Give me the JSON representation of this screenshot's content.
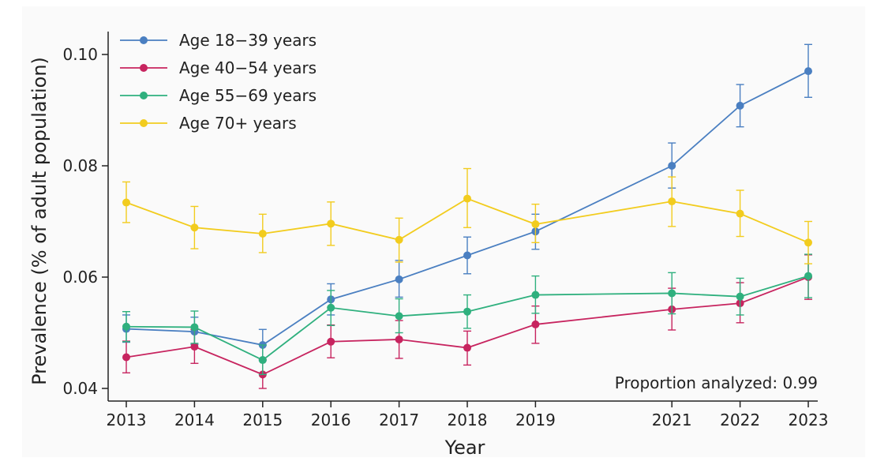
{
  "chart_data": {
    "type": "line",
    "xlabel": "Year",
    "ylabel": "Prevalence (% of adult population)",
    "x": [
      2013,
      2014,
      2015,
      2016,
      2017,
      2018,
      2019,
      2021,
      2022,
      2023
    ],
    "x_tick_labels": [
      "2013",
      "2014",
      "2015",
      "2016",
      "2017",
      "2018",
      "2019",
      "2021",
      "2022",
      "2023"
    ],
    "xlim": [
      2013,
      2023
    ],
    "ylim": [
      0.04,
      0.1
    ],
    "y_ticks": [
      0.04,
      0.06,
      0.08,
      0.1
    ],
    "y_tick_labels": [
      "0.04",
      "0.06",
      "0.08",
      "0.10"
    ],
    "grid": false,
    "legend_position": "top-left",
    "annotation": "Proportion analyzed: 0.99",
    "series": [
      {
        "name": "Age 18−39 years",
        "color": "#4a7fc1",
        "values": [
          0.0507,
          0.0502,
          0.0478,
          0.056,
          0.0596,
          0.0639,
          0.0682,
          0.08,
          0.0908,
          0.097
        ],
        "err_low": [
          0.0483,
          0.0479,
          0.045,
          0.0532,
          0.0564,
          0.0606,
          0.065,
          0.076,
          0.087,
          0.0923
        ],
        "err_high": [
          0.0532,
          0.0528,
          0.0506,
          0.0588,
          0.063,
          0.0672,
          0.0713,
          0.0841,
          0.0946,
          0.1018
        ]
      },
      {
        "name": "Age 40−54 years",
        "color": "#c7245f",
        "values": [
          0.0456,
          0.0475,
          0.0425,
          0.0484,
          0.0488,
          0.0473,
          0.0515,
          0.0542,
          0.0553,
          0.06
        ],
        "err_low": [
          0.0428,
          0.0445,
          0.04,
          0.0455,
          0.0454,
          0.0442,
          0.0481,
          0.0505,
          0.0518,
          0.056
        ],
        "err_high": [
          0.0485,
          0.0506,
          0.0452,
          0.0514,
          0.0522,
          0.0503,
          0.0548,
          0.058,
          0.059,
          0.064
        ]
      },
      {
        "name": "Age 55−69 years",
        "color": "#2fb07e",
        "values": [
          0.0511,
          0.051,
          0.0451,
          0.0545,
          0.053,
          0.0538,
          0.0568,
          0.0571,
          0.0565,
          0.0602
        ],
        "err_low": [
          0.0484,
          0.0481,
          0.0425,
          0.0513,
          0.05,
          0.0508,
          0.0535,
          0.0534,
          0.0532,
          0.0563
        ],
        "err_high": [
          0.0538,
          0.0539,
          0.0478,
          0.0576,
          0.0561,
          0.0568,
          0.0602,
          0.0608,
          0.0598,
          0.0641
        ]
      },
      {
        "name": "Age 70+ years",
        "color": "#f2cc1e",
        "values": [
          0.0734,
          0.0689,
          0.0678,
          0.0696,
          0.0667,
          0.0741,
          0.0695,
          0.0736,
          0.0714,
          0.0662
        ],
        "err_low": [
          0.0698,
          0.0651,
          0.0644,
          0.0657,
          0.0627,
          0.0689,
          0.0662,
          0.0691,
          0.0673,
          0.0624
        ],
        "err_high": [
          0.0771,
          0.0727,
          0.0713,
          0.0735,
          0.0706,
          0.0795,
          0.0731,
          0.078,
          0.0756,
          0.07
        ]
      }
    ]
  }
}
